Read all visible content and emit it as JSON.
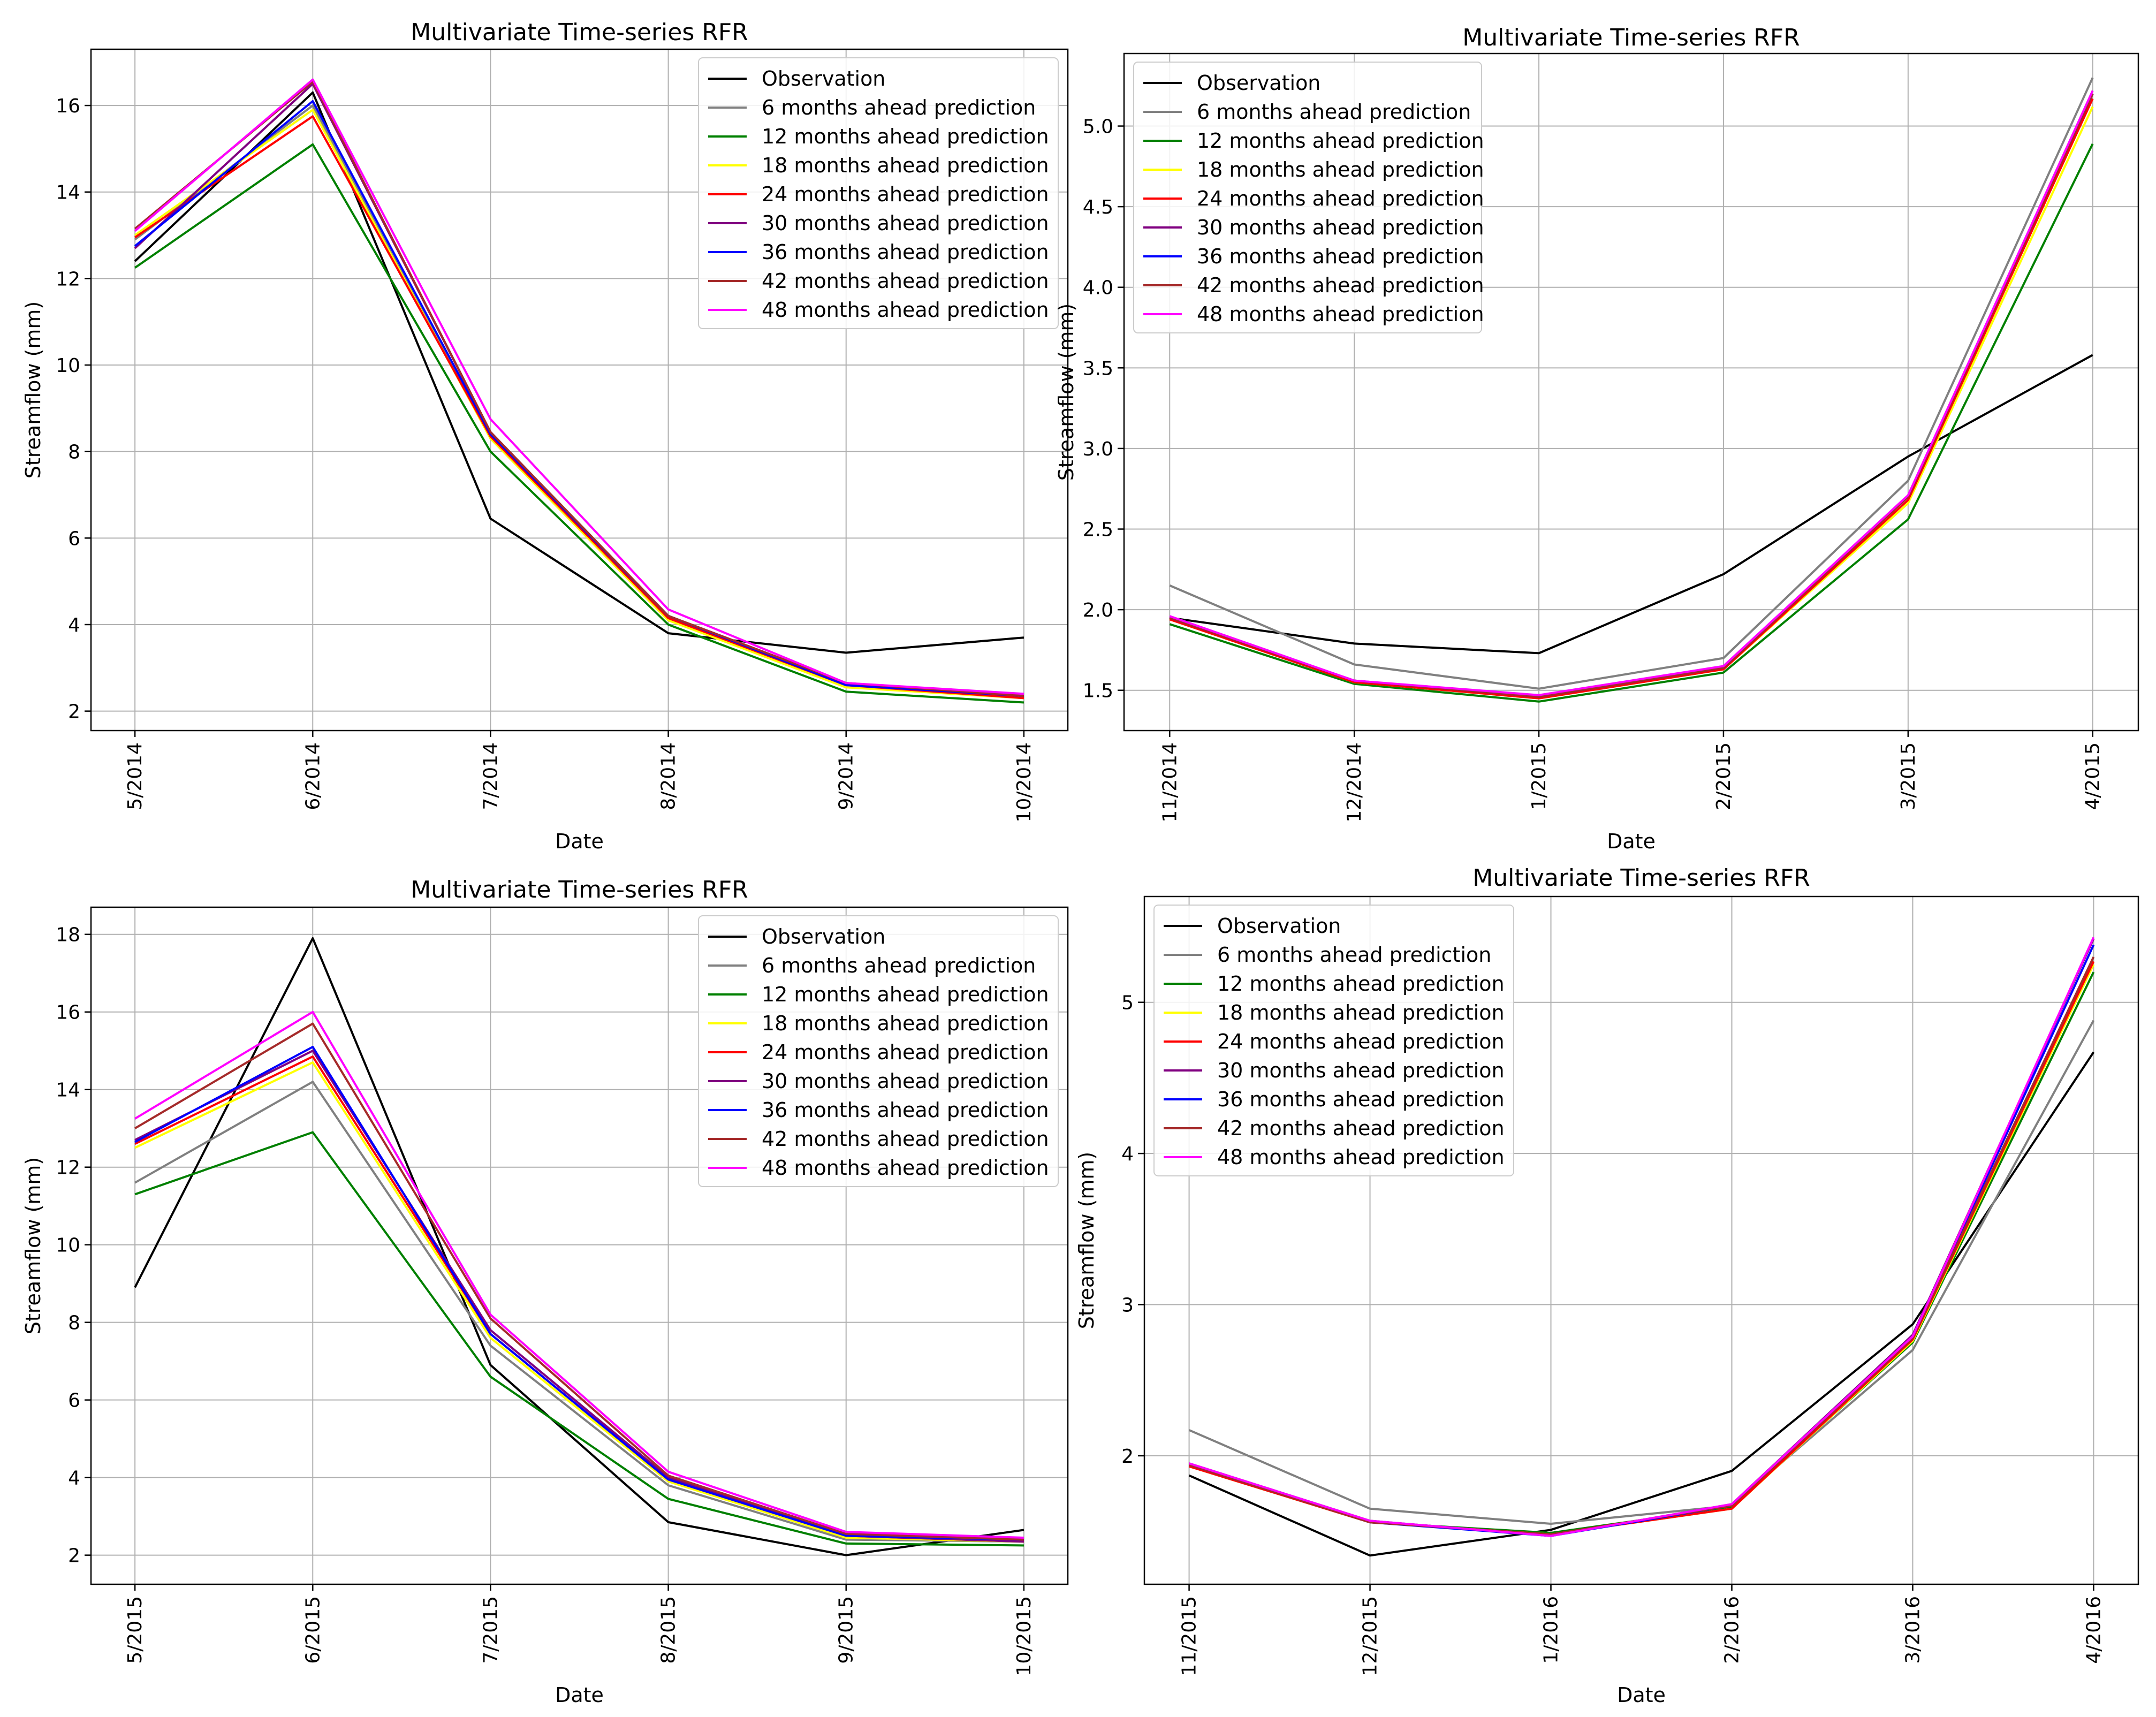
{
  "legend_labels": [
    "Observation",
    "6 months ahead prediction",
    "12 months ahead prediction",
    "18 months ahead prediction",
    "24 months ahead prediction",
    "30 months ahead prediction",
    "36 months ahead prediction",
    "42 months ahead prediction",
    "48 months ahead prediction"
  ],
  "series_colors": [
    "#000000",
    "#808080",
    "#008000",
    "#ffff00",
    "#ff0000",
    "#800080",
    "#0000ff",
    "#a52a2a",
    "#ff00ff"
  ],
  "chart_data": [
    {
      "type": "line",
      "title": "Multivariate Time-series RFR",
      "xlabel": "Date",
      "ylabel": "Streamflow (mm)",
      "categories": [
        "5/2014",
        "6/2014",
        "7/2014",
        "8/2014",
        "9/2014",
        "10/2014"
      ],
      "ylim": [
        1.55,
        17.3
      ],
      "yticks": [
        2,
        4,
        6,
        8,
        10,
        12,
        14,
        16
      ],
      "ytick_labels": [
        "2",
        "4",
        "6",
        "8",
        "10",
        "12",
        "14",
        "16"
      ],
      "grid": true,
      "legend_position": "top-right",
      "series": [
        {
          "name": "Observation",
          "values": [
            12.4,
            16.3,
            6.45,
            3.8,
            3.35,
            3.7
          ]
        },
        {
          "name": "6 months ahead prediction",
          "values": [
            12.9,
            16.0,
            8.3,
            4.1,
            2.6,
            2.35
          ]
        },
        {
          "name": "12 months ahead prediction",
          "values": [
            12.25,
            15.1,
            8.0,
            4.0,
            2.45,
            2.2
          ]
        },
        {
          "name": "18 months ahead prediction",
          "values": [
            13.0,
            15.9,
            8.3,
            4.1,
            2.55,
            2.3
          ]
        },
        {
          "name": "24 months ahead prediction",
          "values": [
            12.95,
            15.75,
            8.35,
            4.15,
            2.6,
            2.3
          ]
        },
        {
          "name": "30 months ahead prediction",
          "values": [
            12.7,
            16.5,
            8.45,
            4.2,
            2.65,
            2.35
          ]
        },
        {
          "name": "36 months ahead prediction",
          "values": [
            12.75,
            16.1,
            8.4,
            4.2,
            2.6,
            2.35
          ]
        },
        {
          "name": "42 months ahead prediction",
          "values": [
            13.15,
            16.55,
            8.45,
            4.2,
            2.65,
            2.35
          ]
        },
        {
          "name": "48 months ahead prediction",
          "values": [
            13.1,
            16.6,
            8.75,
            4.35,
            2.65,
            2.4
          ]
        }
      ]
    },
    {
      "type": "line",
      "title": "Multivariate Time-series RFR",
      "xlabel": "Date",
      "ylabel": "Streamflow (mm)",
      "categories": [
        "11/2014",
        "12/2014",
        "1/2015",
        "2/2015",
        "3/2015",
        "4/2015"
      ],
      "ylim": [
        1.25,
        5.45
      ],
      "yticks": [
        1.5,
        2.0,
        2.5,
        3.0,
        3.5,
        4.0,
        4.5,
        5.0
      ],
      "ytick_labels": [
        "1.5",
        "2.0",
        "2.5",
        "3.0",
        "3.5",
        "4.0",
        "4.5",
        "5.0"
      ],
      "grid": true,
      "legend_position": "top-left",
      "series": [
        {
          "name": "Observation",
          "values": [
            1.95,
            1.79,
            1.73,
            2.22,
            2.95,
            3.58
          ]
        },
        {
          "name": "6 months ahead prediction",
          "values": [
            2.15,
            1.66,
            1.51,
            1.7,
            2.8,
            5.3
          ]
        },
        {
          "name": "12 months ahead prediction",
          "values": [
            1.91,
            1.54,
            1.43,
            1.61,
            2.56,
            4.89
          ]
        },
        {
          "name": "18 months ahead prediction",
          "values": [
            1.94,
            1.55,
            1.45,
            1.63,
            2.66,
            5.12
          ]
        },
        {
          "name": "24 months ahead prediction",
          "values": [
            1.94,
            1.55,
            1.45,
            1.63,
            2.68,
            5.17
          ]
        },
        {
          "name": "30 months ahead prediction",
          "values": [
            1.95,
            1.56,
            1.46,
            1.64,
            2.7,
            5.2
          ]
        },
        {
          "name": "36 months ahead prediction",
          "values": [
            1.95,
            1.56,
            1.46,
            1.64,
            2.7,
            5.2
          ]
        },
        {
          "name": "42 months ahead prediction",
          "values": [
            1.95,
            1.56,
            1.46,
            1.64,
            2.7,
            5.2
          ]
        },
        {
          "name": "48 months ahead prediction",
          "values": [
            1.96,
            1.56,
            1.47,
            1.65,
            2.71,
            5.22
          ]
        }
      ]
    },
    {
      "type": "line",
      "title": "Multivariate Time-series RFR",
      "xlabel": "Date",
      "ylabel": "Streamflow (mm)",
      "categories": [
        "5/2015",
        "6/2015",
        "7/2015",
        "8/2015",
        "9/2015",
        "10/2015"
      ],
      "ylim": [
        1.25,
        18.7
      ],
      "yticks": [
        2,
        4,
        6,
        8,
        10,
        12,
        14,
        16,
        18
      ],
      "ytick_labels": [
        "2",
        "4",
        "6",
        "8",
        "10",
        "12",
        "14",
        "16",
        "18"
      ],
      "grid": true,
      "legend_position": "top-right",
      "series": [
        {
          "name": "Observation",
          "values": [
            8.9,
            17.9,
            6.9,
            2.85,
            2.0,
            2.65
          ]
        },
        {
          "name": "6 months ahead prediction",
          "values": [
            11.6,
            14.2,
            7.4,
            3.8,
            2.4,
            2.35
          ]
        },
        {
          "name": "12 months ahead prediction",
          "values": [
            11.3,
            12.9,
            6.6,
            3.45,
            2.3,
            2.25
          ]
        },
        {
          "name": "18 months ahead prediction",
          "values": [
            12.5,
            14.7,
            7.6,
            3.9,
            2.45,
            2.35
          ]
        },
        {
          "name": "24 months ahead prediction",
          "values": [
            12.6,
            14.85,
            7.7,
            3.95,
            2.5,
            2.35
          ]
        },
        {
          "name": "30 months ahead prediction",
          "values": [
            12.7,
            15.0,
            7.8,
            4.0,
            2.5,
            2.35
          ]
        },
        {
          "name": "36 months ahead prediction",
          "values": [
            12.65,
            15.1,
            7.7,
            3.95,
            2.5,
            2.4
          ]
        },
        {
          "name": "42 months ahead prediction",
          "values": [
            13.0,
            15.7,
            8.1,
            4.05,
            2.55,
            2.4
          ]
        },
        {
          "name": "48 months ahead prediction",
          "values": [
            13.25,
            16.0,
            8.2,
            4.15,
            2.6,
            2.45
          ]
        }
      ]
    },
    {
      "type": "line",
      "title": "Multivariate Time-series RFR",
      "xlabel": "Date",
      "ylabel": "Streamflow (mm)",
      "categories": [
        "11/2015",
        "12/2015",
        "1/2016",
        "2/2016",
        "3/2016",
        "4/2016"
      ],
      "ylim": [
        1.15,
        5.7
      ],
      "yticks": [
        2,
        3,
        4,
        5
      ],
      "ytick_labels": [
        "2",
        "3",
        "4",
        "5"
      ],
      "grid": true,
      "legend_position": "top-left",
      "series": [
        {
          "name": "Observation",
          "values": [
            1.87,
            1.34,
            1.51,
            1.9,
            2.87,
            4.67
          ]
        },
        {
          "name": "6 months ahead prediction",
          "values": [
            2.17,
            1.65,
            1.55,
            1.67,
            2.7,
            4.88
          ]
        },
        {
          "name": "12 months ahead prediction",
          "values": [
            1.93,
            1.56,
            1.49,
            1.66,
            2.75,
            5.2
          ]
        },
        {
          "name": "18 months ahead prediction",
          "values": [
            1.93,
            1.56,
            1.48,
            1.65,
            2.76,
            5.25
          ]
        },
        {
          "name": "24 months ahead prediction",
          "values": [
            1.93,
            1.56,
            1.48,
            1.65,
            2.77,
            5.27
          ]
        },
        {
          "name": "30 months ahead prediction",
          "values": [
            1.95,
            1.57,
            1.47,
            1.68,
            2.8,
            5.42
          ]
        },
        {
          "name": "36 months ahead prediction",
          "values": [
            1.94,
            1.56,
            1.47,
            1.67,
            2.78,
            5.38
          ]
        },
        {
          "name": "42 months ahead prediction",
          "values": [
            1.94,
            1.56,
            1.48,
            1.67,
            2.78,
            5.3
          ]
        },
        {
          "name": "48 months ahead prediction",
          "values": [
            1.95,
            1.57,
            1.47,
            1.68,
            2.79,
            5.43
          ]
        }
      ]
    }
  ]
}
